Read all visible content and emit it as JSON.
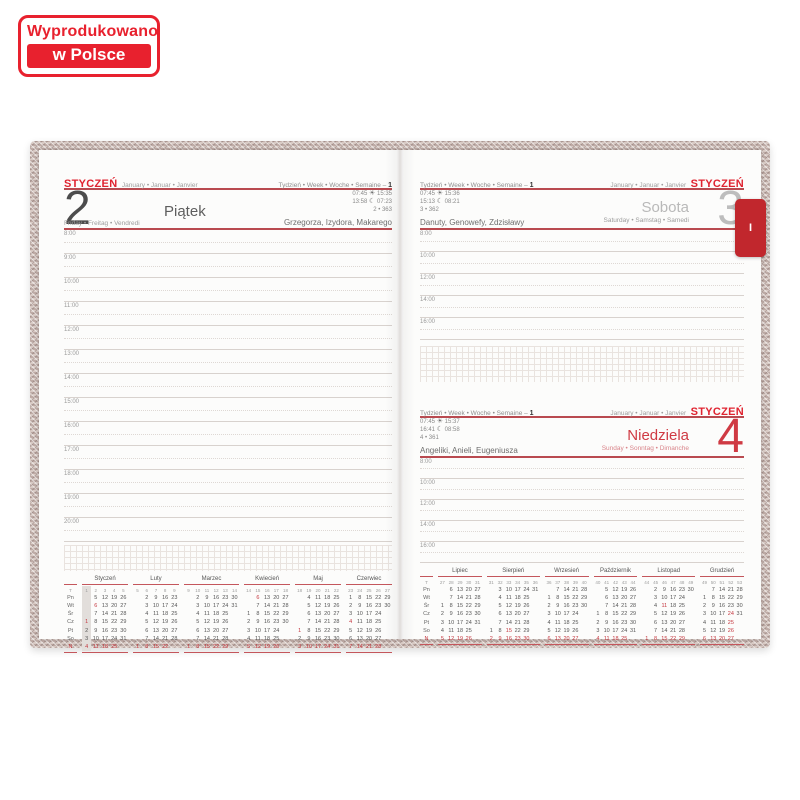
{
  "badge": {
    "line1": "Wyprodukowano",
    "line2": "w Polsce"
  },
  "tab": {
    "label": "I"
  },
  "icons": {
    "sun": "☀",
    "moon": "☾"
  },
  "colors": {
    "accent_red": "#e8212e",
    "diary_red": "#c1272d",
    "line_red": "#b94a50",
    "cover": "#c8b6b0"
  },
  "common": {
    "week_label": "Tydzień • Week • Woche • Semaine –",
    "week_number": "1",
    "month": "STYCZEŃ",
    "month_sub": "January • Januar • Janvier"
  },
  "pages": {
    "left": {
      "day": {
        "number": "2",
        "name": "Piątek",
        "name_sub": "Friday • Freitag • Vendredi",
        "sunrise": "07:45",
        "sunset": "15:35",
        "moonrise": "13:58",
        "moonset": "07:23",
        "day_of_year": "2 • 363",
        "name_days": "Grzegorza, Izydora, Makarego"
      },
      "hours": [
        "8:00",
        "9:00",
        "10:00",
        "11:00",
        "12:00",
        "13:00",
        "14:00",
        "15:00",
        "16:00",
        "17:00",
        "18:00",
        "19:00",
        "20:00"
      ]
    },
    "right_top": {
      "day": {
        "number": "3",
        "name": "Sobota",
        "name_sub": "Saturday • Samstag • Samedi",
        "sunrise": "07:45",
        "sunset": "15:36",
        "moonrise": "15:13",
        "moonset": "08:21",
        "day_of_year": "3 • 362",
        "name_days": "Danuty, Genowefy, Zdzisławy"
      },
      "hours": [
        "8:00",
        "10:00",
        "12:00",
        "14:00",
        "16:00"
      ]
    },
    "right_bottom": {
      "day": {
        "number": "4",
        "name": "Niedziela",
        "name_sub": "Sunday • Sonntag • Dimanche",
        "sunrise": "07:45",
        "sunset": "15:37",
        "moonrise": "16:41",
        "moonset": "08:58",
        "day_of_year": "4 • 361",
        "name_days": "Angeliki, Anieli, Eugeniusza"
      },
      "hours": [
        "8:00",
        "10:00",
        "12:00",
        "14:00",
        "16:00"
      ]
    }
  },
  "mini_calendars": {
    "corner_label": "T",
    "weekday_labels": [
      "Pn",
      "Wt",
      "Śr",
      "Cz",
      "Pt",
      "So",
      "N"
    ],
    "left_months": [
      {
        "name": "Styczeń",
        "weeks": [
          "1",
          "2",
          "3",
          "4",
          "5"
        ],
        "highlight_col": 0,
        "red_cells": [
          [
            3,
            0
          ],
          [
            1,
            1
          ]
        ],
        "rows": [
          [
            "",
            "5",
            "12",
            "19",
            "26"
          ],
          [
            "",
            "6",
            "13",
            "20",
            "27"
          ],
          [
            "",
            "7",
            "14",
            "21",
            "28"
          ],
          [
            "1",
            "8",
            "15",
            "22",
            "29"
          ],
          [
            "2",
            "9",
            "16",
            "23",
            "30"
          ],
          [
            "3",
            "10",
            "17",
            "24",
            "31"
          ],
          [
            "4",
            "11",
            "18",
            "25",
            ""
          ]
        ]
      },
      {
        "name": "Luty",
        "weeks": [
          "5",
          "6",
          "7",
          "8",
          "9"
        ],
        "red_cells": [],
        "rows": [
          [
            "",
            "2",
            "9",
            "16",
            "23"
          ],
          [
            "",
            "3",
            "10",
            "17",
            "24"
          ],
          [
            "",
            "4",
            "11",
            "18",
            "25"
          ],
          [
            "",
            "5",
            "12",
            "19",
            "26"
          ],
          [
            "",
            "6",
            "13",
            "20",
            "27"
          ],
          [
            "",
            "7",
            "14",
            "21",
            "28"
          ],
          [
            "1",
            "8",
            "15",
            "22",
            ""
          ]
        ]
      },
      {
        "name": "Marzec",
        "weeks": [
          "9",
          "10",
          "11",
          "12",
          "13",
          "14"
        ],
        "red_cells": [],
        "rows": [
          [
            "",
            "2",
            "9",
            "16",
            "23",
            "30"
          ],
          [
            "",
            "3",
            "10",
            "17",
            "24",
            "31"
          ],
          [
            "",
            "4",
            "11",
            "18",
            "25",
            ""
          ],
          [
            "",
            "5",
            "12",
            "19",
            "26",
            ""
          ],
          [
            "",
            "6",
            "13",
            "20",
            "27",
            ""
          ],
          [
            "",
            "7",
            "14",
            "21",
            "28",
            ""
          ],
          [
            "1",
            "8",
            "15",
            "22",
            "29",
            ""
          ]
        ]
      },
      {
        "name": "Kwiecień",
        "weeks": [
          "14",
          "15",
          "16",
          "17",
          "18"
        ],
        "red_cells": [
          [
            0,
            1
          ]
        ],
        "rows": [
          [
            "",
            "6",
            "13",
            "20",
            "27"
          ],
          [
            "",
            "7",
            "14",
            "21",
            "28"
          ],
          [
            "1",
            "8",
            "15",
            "22",
            "29"
          ],
          [
            "2",
            "9",
            "16",
            "23",
            "30"
          ],
          [
            "3",
            "10",
            "17",
            "24",
            ""
          ],
          [
            "4",
            "11",
            "18",
            "25",
            ""
          ],
          [
            "5",
            "12",
            "19",
            "26",
            ""
          ]
        ]
      },
      {
        "name": "Maj",
        "weeks": [
          "18",
          "19",
          "20",
          "21",
          "22"
        ],
        "red_cells": [
          [
            4,
            0
          ]
        ],
        "rows": [
          [
            "",
            "4",
            "11",
            "18",
            "25"
          ],
          [
            "",
            "5",
            "12",
            "19",
            "26"
          ],
          [
            "",
            "6",
            "13",
            "20",
            "27"
          ],
          [
            "",
            "7",
            "14",
            "21",
            "28"
          ],
          [
            "1",
            "8",
            "15",
            "22",
            "29"
          ],
          [
            "2",
            "9",
            "16",
            "23",
            "30"
          ],
          [
            "3",
            "10",
            "17",
            "24",
            "31"
          ]
        ]
      },
      {
        "name": "Czerwiec",
        "weeks": [
          "23",
          "24",
          "25",
          "26",
          "27"
        ],
        "red_cells": [
          [
            3,
            0
          ]
        ],
        "rows": [
          [
            "1",
            "8",
            "15",
            "22",
            "29"
          ],
          [
            "2",
            "9",
            "16",
            "23",
            "30"
          ],
          [
            "3",
            "10",
            "17",
            "24",
            ""
          ],
          [
            "4",
            "11",
            "18",
            "25",
            ""
          ],
          [
            "5",
            "12",
            "19",
            "26",
            ""
          ],
          [
            "6",
            "13",
            "20",
            "27",
            ""
          ],
          [
            "7",
            "14",
            "21",
            "28",
            ""
          ]
        ]
      }
    ],
    "right_months": [
      {
        "name": "Lipiec",
        "weeks": [
          "27",
          "28",
          "29",
          "30",
          "31"
        ],
        "red_cells": [],
        "rows": [
          [
            "",
            "6",
            "13",
            "20",
            "27"
          ],
          [
            "",
            "7",
            "14",
            "21",
            "28"
          ],
          [
            "1",
            "8",
            "15",
            "22",
            "29"
          ],
          [
            "2",
            "9",
            "16",
            "23",
            "30"
          ],
          [
            "3",
            "10",
            "17",
            "24",
            "31"
          ],
          [
            "4",
            "11",
            "18",
            "25",
            ""
          ],
          [
            "5",
            "12",
            "19",
            "26",
            ""
          ]
        ]
      },
      {
        "name": "Sierpień",
        "weeks": [
          "31",
          "32",
          "33",
          "34",
          "35",
          "36"
        ],
        "red_cells": [
          [
            5,
            2
          ]
        ],
        "rows": [
          [
            "",
            "3",
            "10",
            "17",
            "24",
            "31"
          ],
          [
            "",
            "4",
            "11",
            "18",
            "25",
            ""
          ],
          [
            "",
            "5",
            "12",
            "19",
            "26",
            ""
          ],
          [
            "",
            "6",
            "13",
            "20",
            "27",
            ""
          ],
          [
            "",
            "7",
            "14",
            "21",
            "28",
            ""
          ],
          [
            "1",
            "8",
            "15",
            "22",
            "29",
            ""
          ],
          [
            "2",
            "9",
            "16",
            "23",
            "30",
            ""
          ]
        ]
      },
      {
        "name": "Wrzesień",
        "weeks": [
          "36",
          "37",
          "38",
          "39",
          "40"
        ],
        "red_cells": [],
        "rows": [
          [
            "",
            "7",
            "14",
            "21",
            "28"
          ],
          [
            "1",
            "8",
            "15",
            "22",
            "29"
          ],
          [
            "2",
            "9",
            "16",
            "23",
            "30"
          ],
          [
            "3",
            "10",
            "17",
            "24",
            ""
          ],
          [
            "4",
            "11",
            "18",
            "25",
            ""
          ],
          [
            "5",
            "12",
            "19",
            "26",
            ""
          ],
          [
            "6",
            "13",
            "20",
            "27",
            ""
          ]
        ]
      },
      {
        "name": "Październik",
        "weeks": [
          "40",
          "41",
          "42",
          "43",
          "44"
        ],
        "red_cells": [],
        "rows": [
          [
            "",
            "5",
            "12",
            "19",
            "26"
          ],
          [
            "",
            "6",
            "13",
            "20",
            "27"
          ],
          [
            "",
            "7",
            "14",
            "21",
            "28"
          ],
          [
            "1",
            "8",
            "15",
            "22",
            "29"
          ],
          [
            "2",
            "9",
            "16",
            "23",
            "30"
          ],
          [
            "3",
            "10",
            "17",
            "24",
            "31"
          ],
          [
            "4",
            "11",
            "18",
            "25",
            ""
          ]
        ]
      },
      {
        "name": "Listopad",
        "weeks": [
          "44",
          "45",
          "46",
          "47",
          "48",
          "49"
        ],
        "red_cells": [
          [
            2,
            2
          ]
        ],
        "rows": [
          [
            "",
            "2",
            "9",
            "16",
            "23",
            "30"
          ],
          [
            "",
            "3",
            "10",
            "17",
            "24",
            ""
          ],
          [
            "",
            "4",
            "11",
            "18",
            "25",
            ""
          ],
          [
            "",
            "5",
            "12",
            "19",
            "26",
            ""
          ],
          [
            "",
            "6",
            "13",
            "20",
            "27",
            ""
          ],
          [
            "",
            "7",
            "14",
            "21",
            "28",
            ""
          ],
          [
            "1",
            "8",
            "15",
            "22",
            "29",
            ""
          ]
        ]
      },
      {
        "name": "Grudzień",
        "weeks": [
          "49",
          "50",
          "51",
          "52",
          "53"
        ],
        "red_cells": [
          [
            3,
            3
          ],
          [
            4,
            3
          ],
          [
            5,
            3
          ]
        ],
        "rows": [
          [
            "",
            "7",
            "14",
            "21",
            "28"
          ],
          [
            "1",
            "8",
            "15",
            "22",
            "29"
          ],
          [
            "2",
            "9",
            "16",
            "23",
            "30"
          ],
          [
            "3",
            "10",
            "17",
            "24",
            "31"
          ],
          [
            "4",
            "11",
            "18",
            "25",
            ""
          ],
          [
            "5",
            "12",
            "19",
            "26",
            ""
          ],
          [
            "6",
            "13",
            "20",
            "27",
            ""
          ]
        ]
      }
    ]
  }
}
